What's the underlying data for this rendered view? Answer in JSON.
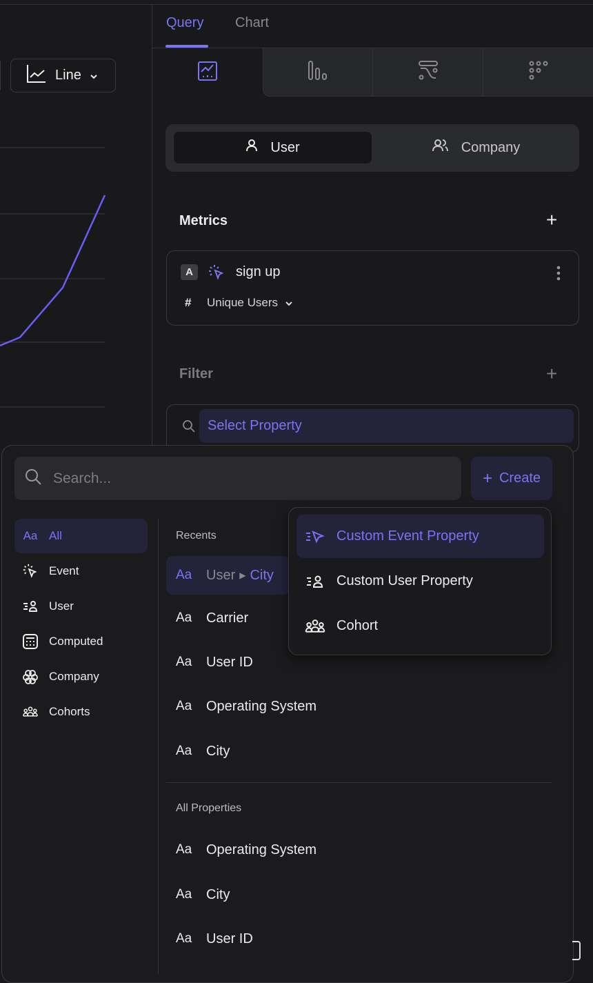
{
  "chart_toolbar": {
    "chart_type": "Line"
  },
  "tabs": [
    {
      "label": "Query",
      "active": true
    },
    {
      "label": "Chart",
      "active": false
    }
  ],
  "chart_type_tabs": [
    "line-chart-icon",
    "bar-chart-icon",
    "flow-icon",
    "retention-grid-icon"
  ],
  "entity_toggle": {
    "user": "User",
    "company": "Company",
    "selected": "User"
  },
  "metrics": {
    "title": "Metrics",
    "items": [
      {
        "letter": "A",
        "event": "sign up",
        "aggregation_symbol": "#",
        "aggregation": "Unique Users"
      }
    ]
  },
  "filter": {
    "title": "Filter",
    "select_placeholder": "Select Property"
  },
  "property_picker": {
    "search_placeholder": "Search...",
    "create_label": "Create",
    "categories": [
      {
        "icon": "Aa",
        "label": "All",
        "active": true
      },
      {
        "label": "Event"
      },
      {
        "label": "User"
      },
      {
        "label": "Computed"
      },
      {
        "label": "Company"
      },
      {
        "label": "Cohorts"
      }
    ],
    "recents_title": "Recents",
    "recents": [
      {
        "aa": "Aa",
        "parent": "User",
        "label": "City",
        "active": true
      },
      {
        "aa": "Aa",
        "label": "Carrier"
      },
      {
        "aa": "Aa",
        "label": "User ID"
      },
      {
        "aa": "Aa",
        "label": "Operating System"
      },
      {
        "aa": "Aa",
        "label": "City"
      }
    ],
    "all_title": "All Properties",
    "all": [
      {
        "aa": "Aa",
        "label": "Operating System"
      },
      {
        "aa": "Aa",
        "label": "City"
      },
      {
        "aa": "Aa",
        "label": "User ID"
      }
    ]
  },
  "create_menu": [
    {
      "label": "Custom Event Property",
      "active": true
    },
    {
      "label": "Custom User Property"
    },
    {
      "label": "Cohort"
    }
  ],
  "colors": {
    "accent": "#7b74f2",
    "background": "#19191b",
    "highlight": "#23243a"
  }
}
